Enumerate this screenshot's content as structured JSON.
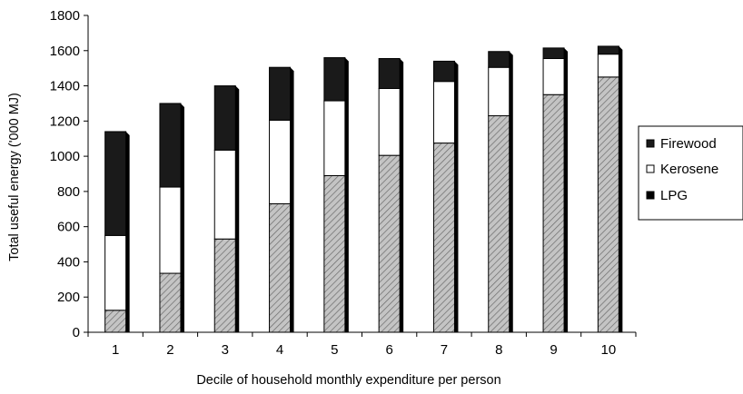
{
  "chart_data": {
    "type": "bar",
    "stacked": true,
    "categories": [
      "1",
      "2",
      "3",
      "4",
      "5",
      "6",
      "7",
      "8",
      "9",
      "10"
    ],
    "series": [
      {
        "name": "LPG",
        "values": [
          125,
          335,
          530,
          730,
          890,
          1005,
          1075,
          1230,
          1350,
          1450
        ],
        "pattern": "hatched"
      },
      {
        "name": "Kerosene",
        "values": [
          425,
          490,
          505,
          475,
          425,
          380,
          350,
          275,
          205,
          130
        ],
        "color": "#ffffff"
      },
      {
        "name": "Firewood",
        "values": [
          590,
          475,
          365,
          300,
          245,
          170,
          115,
          90,
          60,
          45
        ],
        "color": "#1a1a1a"
      }
    ],
    "legend": {
      "position": "right",
      "entries": [
        "Firewood",
        "Kerosene",
        "LPG"
      ]
    },
    "xlabel": "Decile of household monthly expenditure per person",
    "ylabel": "Total useful energy ('000 MJ)",
    "ylim": [
      0,
      1800
    ],
    "yticks": [
      "0",
      "200",
      "400",
      "600",
      "800",
      "1000",
      "1200",
      "1400",
      "1600",
      "1800"
    ],
    "grid": false
  }
}
